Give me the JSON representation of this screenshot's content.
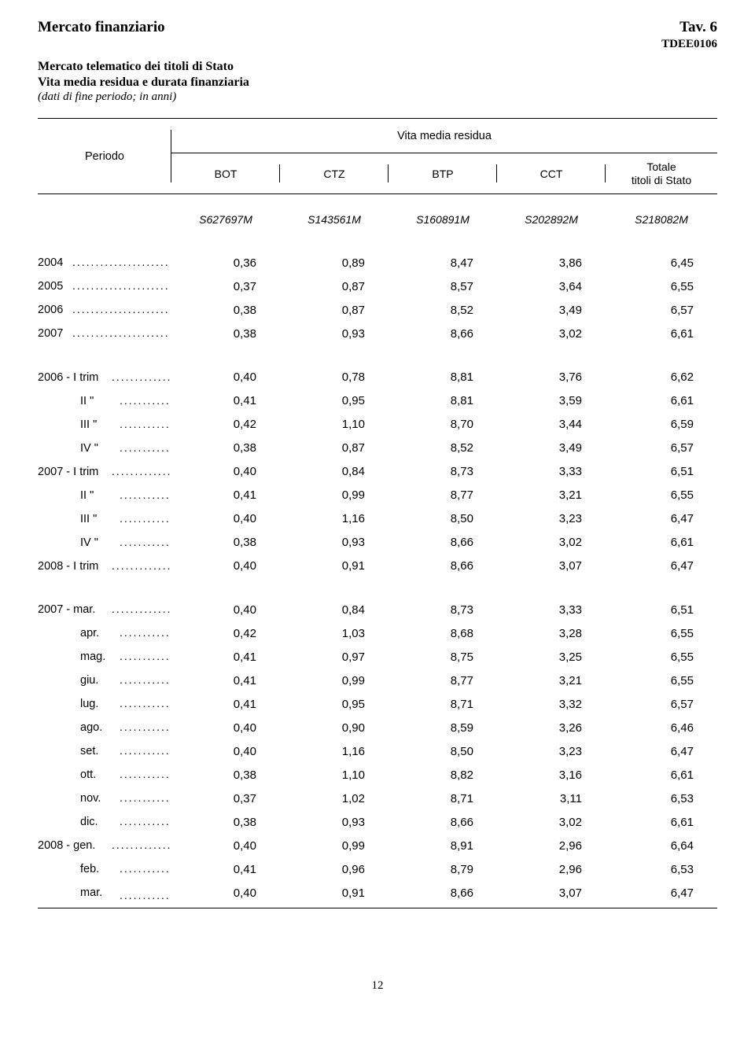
{
  "header": {
    "left_title": "Mercato finanziario",
    "right_title": "Tav. 6",
    "doc_code": "TDEE0106",
    "subtitle_line1": "Mercato telematico dei titoli di Stato",
    "subtitle_line2": "Vita media residua e durata finanziaria",
    "note": "(dati di fine periodo; in anni)",
    "periodo_label": "Periodo",
    "group_label": "Vita media residua",
    "col_bot": "BOT",
    "col_ctz": "CTZ",
    "col_btp": "BTP",
    "col_cct": "CCT",
    "col_totale_1": "Totale",
    "col_totale_2": "titoli di Stato",
    "code_bot": "S627697M",
    "code_ctz": "S143561M",
    "code_btp": "S160891M",
    "code_cct": "S202892M",
    "code_tot": "S218082M"
  },
  "rows": {
    "y2004": {
      "label": "2004",
      "v": [
        "0,36",
        "0,89",
        "8,47",
        "3,86",
        "6,45"
      ]
    },
    "y2005": {
      "label": "2005",
      "v": [
        "0,37",
        "0,87",
        "8,57",
        "3,64",
        "6,55"
      ]
    },
    "y2006": {
      "label": "2006",
      "v": [
        "0,38",
        "0,87",
        "8,52",
        "3,49",
        "6,57"
      ]
    },
    "y2007": {
      "label": "2007",
      "v": [
        "0,38",
        "0,93",
        "8,66",
        "3,02",
        "6,61"
      ]
    },
    "q2006_1": {
      "label": "2006 - I   trim",
      "v": [
        "0,40",
        "0,78",
        "8,81",
        "3,76",
        "6,62"
      ]
    },
    "q2006_2": {
      "label": "II    \"",
      "v": [
        "0,41",
        "0,95",
        "8,81",
        "3,59",
        "6,61"
      ]
    },
    "q2006_3": {
      "label": "III   \"",
      "v": [
        "0,42",
        "1,10",
        "8,70",
        "3,44",
        "6,59"
      ]
    },
    "q2006_4": {
      "label": "IV   \"",
      "v": [
        "0,38",
        "0,87",
        "8,52",
        "3,49",
        "6,57"
      ]
    },
    "q2007_1": {
      "label": "2007 - I   trim",
      "v": [
        "0,40",
        "0,84",
        "8,73",
        "3,33",
        "6,51"
      ]
    },
    "q2007_2": {
      "label": "II    \"",
      "v": [
        "0,41",
        "0,99",
        "8,77",
        "3,21",
        "6,55"
      ]
    },
    "q2007_3": {
      "label": "III   \"",
      "v": [
        "0,40",
        "1,16",
        "8,50",
        "3,23",
        "6,47"
      ]
    },
    "q2007_4": {
      "label": "IV   \"",
      "v": [
        "0,38",
        "0,93",
        "8,66",
        "3,02",
        "6,61"
      ]
    },
    "q2008_1": {
      "label": "2008 - I   trim",
      "v": [
        "0,40",
        "0,91",
        "8,66",
        "3,07",
        "6,47"
      ]
    },
    "m2007_03": {
      "label": "2007 - mar.  ",
      "v": [
        "0,40",
        "0,84",
        "8,73",
        "3,33",
        "6,51"
      ]
    },
    "m2007_04": {
      "label": "apr.  ",
      "v": [
        "0,42",
        "1,03",
        "8,68",
        "3,28",
        "6,55"
      ]
    },
    "m2007_05": {
      "label": "mag. ",
      "v": [
        "0,41",
        "0,97",
        "8,75",
        "3,25",
        "6,55"
      ]
    },
    "m2007_06": {
      "label": "giu.  ",
      "v": [
        "0,41",
        "0,99",
        "8,77",
        "3,21",
        "6,55"
      ]
    },
    "m2007_07": {
      "label": "lug.  ",
      "v": [
        "0,41",
        "0,95",
        "8,71",
        "3,32",
        "6,57"
      ]
    },
    "m2007_08": {
      "label": "ago.  ",
      "v": [
        "0,40",
        "0,90",
        "8,59",
        "3,26",
        "6,46"
      ]
    },
    "m2007_09": {
      "label": "set.  ",
      "v": [
        "0,40",
        "1,16",
        "8,50",
        "3,23",
        "6,47"
      ]
    },
    "m2007_10": {
      "label": "ott.  ",
      "v": [
        "0,38",
        "1,10",
        "8,82",
        "3,16",
        "6,61"
      ]
    },
    "m2007_11": {
      "label": "nov.  ",
      "v": [
        "0,37",
        "1,02",
        "8,71",
        "3,11",
        "6,53"
      ]
    },
    "m2007_12": {
      "label": "dic.  ",
      "v": [
        "0,38",
        "0,93",
        "8,66",
        "3,02",
        "6,61"
      ]
    },
    "m2008_01": {
      "label": "2008 - gen.  ",
      "v": [
        "0,40",
        "0,99",
        "8,91",
        "2,96",
        "6,64"
      ]
    },
    "m2008_02": {
      "label": "feb.  ",
      "v": [
        "0,41",
        "0,96",
        "8,79",
        "2,96",
        "6,53"
      ]
    },
    "m2008_03": {
      "label": "mar.  ",
      "v": [
        "0,40",
        "0,91",
        "8,66",
        "3,07",
        "6,47"
      ]
    }
  },
  "page_number": "12"
}
